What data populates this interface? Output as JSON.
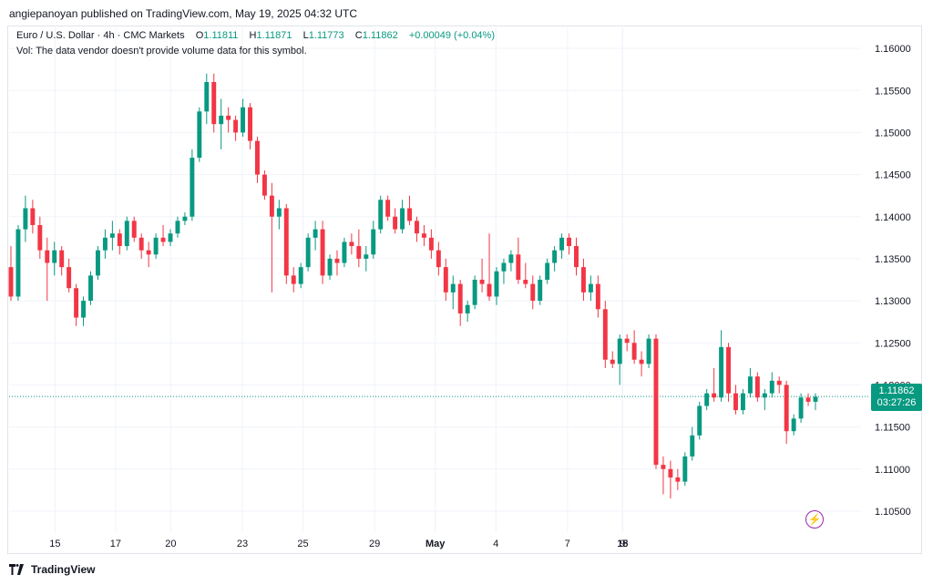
{
  "header": {
    "published_line": "angiepanoyan published on TradingView.com, May 19, 2025 04:32 UTC"
  },
  "legend": {
    "symbol": "Euro / U.S. Dollar · 4h · CMC Markets",
    "open_label": "O",
    "open": "1.11811",
    "high_label": "H",
    "high": "1.11871",
    "low_label": "L",
    "low": "1.11773",
    "close_label": "C",
    "close": "1.11862",
    "change": "+0.00049 (+0.04%)",
    "volume_note": "Vol: The data vendor doesn't provide volume data for this symbol."
  },
  "price_badge": {
    "price": "1.11862",
    "countdown": "03:27:26"
  },
  "footer": {
    "brand": "TradingView"
  },
  "colors": {
    "up": "#089981",
    "down": "#f23645",
    "grid": "#f0f3fa",
    "text": "#131722",
    "accent": "#9c27b0"
  },
  "chart_data": {
    "type": "candlestick",
    "ylim": [
      1.1025,
      1.1625
    ],
    "y_ticks": [
      "1.16000",
      "1.15500",
      "1.15000",
      "1.14500",
      "1.14000",
      "1.13500",
      "1.13000",
      "1.12500",
      "1.12000",
      "1.11500",
      "1.11000",
      "1.10500"
    ],
    "x_ticks": [
      "15",
      "17",
      "20",
      "23",
      "25",
      "29",
      "May",
      "4",
      "7",
      "9",
      "13",
      "15",
      "18"
    ],
    "last_price": 1.11862,
    "ohlc": [
      [
        1.134,
        1.1365,
        1.13,
        1.1305
      ],
      [
        1.1305,
        1.139,
        1.13,
        1.1385
      ],
      [
        1.1385,
        1.1425,
        1.137,
        1.141
      ],
      [
        1.141,
        1.142,
        1.138,
        1.139
      ],
      [
        1.139,
        1.14,
        1.135,
        1.136
      ],
      [
        1.136,
        1.1375,
        1.13,
        1.1345
      ],
      [
        1.1345,
        1.137,
        1.133,
        1.136
      ],
      [
        1.136,
        1.1365,
        1.133,
        1.134
      ],
      [
        1.134,
        1.135,
        1.131,
        1.1315
      ],
      [
        1.1315,
        1.132,
        1.127,
        1.128
      ],
      [
        1.128,
        1.1305,
        1.127,
        1.13
      ],
      [
        1.13,
        1.1335,
        1.1295,
        1.133
      ],
      [
        1.133,
        1.1365,
        1.1325,
        1.136
      ],
      [
        1.136,
        1.1385,
        1.135,
        1.1375
      ],
      [
        1.1375,
        1.1395,
        1.136,
        1.138
      ],
      [
        1.138,
        1.1385,
        1.1355,
        1.1365
      ],
      [
        1.1365,
        1.14,
        1.136,
        1.1395
      ],
      [
        1.1395,
        1.14,
        1.137,
        1.1375
      ],
      [
        1.1375,
        1.138,
        1.135,
        1.136
      ],
      [
        1.136,
        1.137,
        1.134,
        1.1355
      ],
      [
        1.1355,
        1.138,
        1.135,
        1.1375
      ],
      [
        1.1375,
        1.139,
        1.1365,
        1.137
      ],
      [
        1.137,
        1.1385,
        1.1365,
        1.138
      ],
      [
        1.138,
        1.14,
        1.1375,
        1.1395
      ],
      [
        1.1395,
        1.1405,
        1.139,
        1.14
      ],
      [
        1.14,
        1.148,
        1.1395,
        1.147
      ],
      [
        1.147,
        1.153,
        1.1465,
        1.1525
      ],
      [
        1.1525,
        1.157,
        1.151,
        1.156
      ],
      [
        1.156,
        1.157,
        1.15,
        1.151
      ],
      [
        1.151,
        1.154,
        1.148,
        1.152
      ],
      [
        1.152,
        1.153,
        1.15,
        1.1515
      ],
      [
        1.1515,
        1.152,
        1.149,
        1.15
      ],
      [
        1.15,
        1.154,
        1.1495,
        1.153
      ],
      [
        1.153,
        1.1535,
        1.148,
        1.149
      ],
      [
        1.149,
        1.1495,
        1.144,
        1.145
      ],
      [
        1.145,
        1.1455,
        1.142,
        1.1425
      ],
      [
        1.1425,
        1.144,
        1.131,
        1.14
      ],
      [
        1.14,
        1.142,
        1.1385,
        1.141
      ],
      [
        1.141,
        1.1415,
        1.132,
        1.133
      ],
      [
        1.133,
        1.134,
        1.131,
        1.132
      ],
      [
        1.132,
        1.1345,
        1.1315,
        1.134
      ],
      [
        1.134,
        1.138,
        1.1335,
        1.1375
      ],
      [
        1.1375,
        1.1395,
        1.136,
        1.1385
      ],
      [
        1.1385,
        1.1395,
        1.132,
        1.133
      ],
      [
        1.133,
        1.1355,
        1.1325,
        1.135
      ],
      [
        1.135,
        1.136,
        1.133,
        1.1345
      ],
      [
        1.1345,
        1.1375,
        1.134,
        1.137
      ],
      [
        1.137,
        1.138,
        1.1355,
        1.1365
      ],
      [
        1.1365,
        1.1385,
        1.134,
        1.135
      ],
      [
        1.135,
        1.1365,
        1.1335,
        1.1355
      ],
      [
        1.1355,
        1.1395,
        1.135,
        1.1385
      ],
      [
        1.1385,
        1.1425,
        1.138,
        1.142
      ],
      [
        1.142,
        1.1425,
        1.1395,
        1.14
      ],
      [
        1.14,
        1.141,
        1.138,
        1.1385
      ],
      [
        1.1385,
        1.142,
        1.138,
        1.141
      ],
      [
        1.141,
        1.1425,
        1.139,
        1.1395
      ],
      [
        1.1395,
        1.14,
        1.137,
        1.138
      ],
      [
        1.138,
        1.139,
        1.1365,
        1.1375
      ],
      [
        1.1375,
        1.1385,
        1.135,
        1.136
      ],
      [
        1.136,
        1.137,
        1.133,
        1.134
      ],
      [
        1.134,
        1.135,
        1.13,
        1.131
      ],
      [
        1.131,
        1.133,
        1.129,
        1.132
      ],
      [
        1.132,
        1.1325,
        1.127,
        1.1285
      ],
      [
        1.1285,
        1.13,
        1.1275,
        1.1295
      ],
      [
        1.1295,
        1.133,
        1.129,
        1.1325
      ],
      [
        1.1325,
        1.135,
        1.131,
        1.132
      ],
      [
        1.132,
        1.138,
        1.13,
        1.1305
      ],
      [
        1.1305,
        1.134,
        1.1295,
        1.1335
      ],
      [
        1.1335,
        1.135,
        1.132,
        1.1345
      ],
      [
        1.1345,
        1.136,
        1.1335,
        1.1355
      ],
      [
        1.1355,
        1.1375,
        1.132,
        1.1325
      ],
      [
        1.1325,
        1.1345,
        1.1315,
        1.132
      ],
      [
        1.132,
        1.133,
        1.129,
        1.13
      ],
      [
        1.13,
        1.133,
        1.1295,
        1.1325
      ],
      [
        1.1325,
        1.135,
        1.132,
        1.1345
      ],
      [
        1.1345,
        1.1365,
        1.1335,
        1.136
      ],
      [
        1.136,
        1.138,
        1.135,
        1.1375
      ],
      [
        1.1375,
        1.138,
        1.1355,
        1.1365
      ],
      [
        1.1365,
        1.1375,
        1.133,
        1.134
      ],
      [
        1.134,
        1.135,
        1.13,
        1.131
      ],
      [
        1.131,
        1.133,
        1.13,
        1.132
      ],
      [
        1.132,
        1.133,
        1.128,
        1.129
      ],
      [
        1.129,
        1.13,
        1.122,
        1.123
      ],
      [
        1.123,
        1.124,
        1.122,
        1.1225
      ],
      [
        1.1225,
        1.126,
        1.12,
        1.1255
      ],
      [
        1.1255,
        1.126,
        1.124,
        1.125
      ],
      [
        1.125,
        1.1265,
        1.1225,
        1.123
      ],
      [
        1.123,
        1.124,
        1.121,
        1.1225
      ],
      [
        1.1225,
        1.126,
        1.122,
        1.1255
      ],
      [
        1.1255,
        1.126,
        1.11,
        1.1105
      ],
      [
        1.1105,
        1.1115,
        1.107,
        1.11
      ],
      [
        1.11,
        1.111,
        1.1065,
        1.109
      ],
      [
        1.109,
        1.11,
        1.1075,
        1.1085
      ],
      [
        1.1085,
        1.112,
        1.108,
        1.1115
      ],
      [
        1.1115,
        1.115,
        1.111,
        1.114
      ],
      [
        1.114,
        1.118,
        1.1135,
        1.1175
      ],
      [
        1.1175,
        1.1195,
        1.117,
        1.119
      ],
      [
        1.119,
        1.122,
        1.118,
        1.1185
      ],
      [
        1.1185,
        1.1265,
        1.118,
        1.1245
      ],
      [
        1.1245,
        1.125,
        1.118,
        1.119
      ],
      [
        1.119,
        1.12,
        1.1165,
        1.117
      ],
      [
        1.117,
        1.1195,
        1.1165,
        1.119
      ],
      [
        1.119,
        1.122,
        1.1185,
        1.121
      ],
      [
        1.121,
        1.1215,
        1.118,
        1.1185
      ],
      [
        1.1185,
        1.1195,
        1.117,
        1.119
      ],
      [
        1.119,
        1.1215,
        1.1185,
        1.1205
      ],
      [
        1.1205,
        1.121,
        1.119,
        1.12
      ],
      [
        1.12,
        1.1205,
        1.113,
        1.1145
      ],
      [
        1.1145,
        1.1165,
        1.114,
        1.116
      ],
      [
        1.116,
        1.119,
        1.1155,
        1.1185
      ],
      [
        1.1185,
        1.119,
        1.1175,
        1.118
      ],
      [
        1.118,
        1.119,
        1.117,
        1.1186
      ]
    ]
  }
}
